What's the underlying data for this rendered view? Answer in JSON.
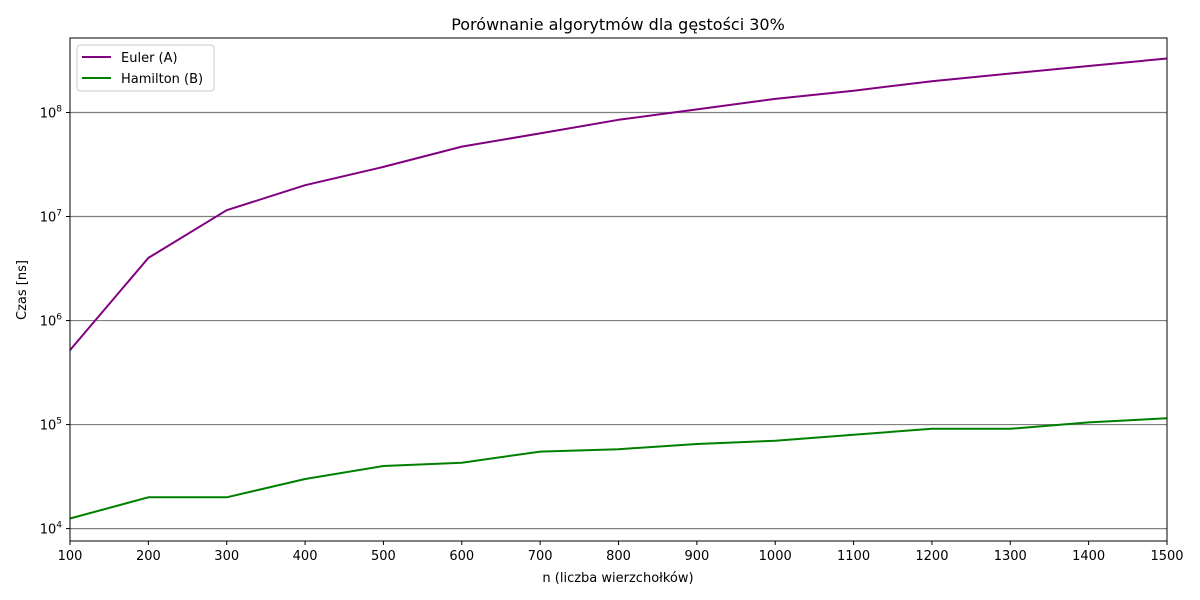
{
  "chart_data": {
    "type": "line",
    "title": "Porównanie algorytmów dla gęstości 30%",
    "xlabel": "n (liczba wierzchołków)",
    "ylabel": "Czas [ns]",
    "x": [
      100,
      200,
      300,
      400,
      500,
      600,
      700,
      800,
      900,
      1000,
      1100,
      1200,
      1300,
      1400,
      1500
    ],
    "xlim": [
      100,
      1500
    ],
    "x_ticks": [
      100,
      200,
      300,
      400,
      500,
      600,
      700,
      800,
      900,
      1000,
      1100,
      1200,
      1300,
      1400,
      1500
    ],
    "y_scale": "log",
    "ylim": [
      7600,
      520000000
    ],
    "y_ticks": [
      {
        "value": 10000,
        "base": "10",
        "exp": "4"
      },
      {
        "value": 100000,
        "base": "10",
        "exp": "5"
      },
      {
        "value": 1000000,
        "base": "10",
        "exp": "6"
      },
      {
        "value": 10000000,
        "base": "10",
        "exp": "7"
      },
      {
        "value": 100000000,
        "base": "10",
        "exp": "8"
      }
    ],
    "grid": "horizontal",
    "legend_position": "top-left",
    "series": [
      {
        "name": "Euler (A)",
        "color": "#800080",
        "values": [
          520000,
          4000000,
          11500000,
          20000000,
          30000000,
          47000000,
          63000000,
          85000000,
          107000000,
          135000000,
          162000000,
          200000000,
          237000000,
          280000000,
          330000000
        ]
      },
      {
        "name": "Hamilton (B)",
        "color": "#008000",
        "values": [
          12500,
          20000,
          20000,
          30000,
          40000,
          43000,
          55000,
          58000,
          65000,
          70000,
          80000,
          91000,
          91000,
          105000,
          115000
        ]
      }
    ]
  }
}
